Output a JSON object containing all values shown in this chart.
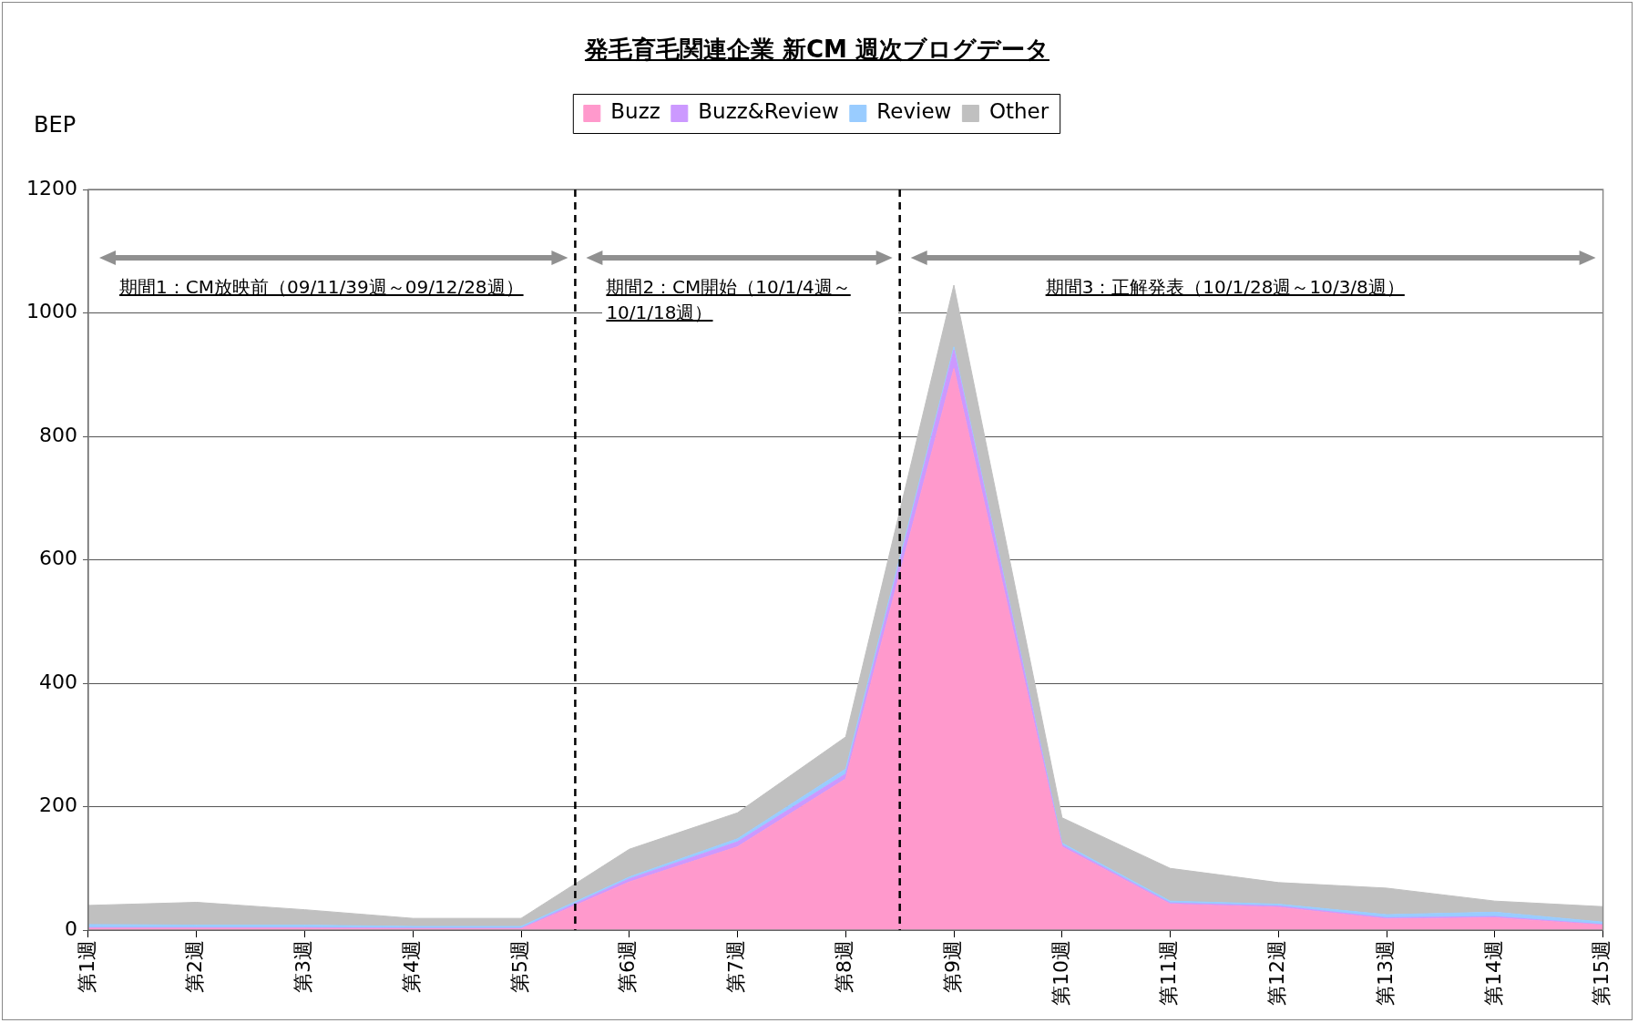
{
  "chart_data": {
    "type": "area",
    "title": "発毛育毛関連企業 新CM 週次ブログデータ",
    "ylabel": "BEP",
    "categories": [
      "第1週",
      "第2週",
      "第3週",
      "第4週",
      "第5週",
      "第6週",
      "第7週",
      "第8週",
      "第9週",
      "第10週",
      "第11週",
      "第12週",
      "第13週",
      "第14週",
      "第15週"
    ],
    "ylim": [
      0,
      1200
    ],
    "yticks": [
      0,
      200,
      400,
      600,
      800,
      1000,
      1200
    ],
    "stacked": true,
    "grid": "y",
    "legend": "top",
    "series": [
      {
        "name": "Buzz",
        "color": "#ff99cc",
        "values": [
          3,
          3,
          3,
          2,
          2,
          78,
          135,
          245,
          910,
          135,
          42,
          37,
          18,
          20,
          8
        ]
      },
      {
        "name": "Buzz&Review",
        "color": "#cc99ff",
        "values": [
          1,
          1,
          1,
          1,
          1,
          5,
          8,
          8,
          30,
          3,
          2,
          2,
          2,
          2,
          1
        ]
      },
      {
        "name": "Review",
        "color": "#99ccff",
        "values": [
          5,
          4,
          4,
          3,
          3,
          3,
          5,
          8,
          5,
          3,
          3,
          3,
          5,
          7,
          4
        ]
      },
      {
        "name": "Other",
        "color": "#c0c0c0",
        "values": [
          31,
          37,
          25,
          13,
          13,
          45,
          42,
          52,
          100,
          41,
          53,
          35,
          43,
          18,
          25
        ]
      }
    ],
    "annotations": [
      "期間1：CM放映前（09/11/39週～09/12/28週）",
      "期間2：CM開始（10/1/4週～10/1/18週）",
      "期間3：正解発表（10/1/28週～10/3/8週）"
    ]
  }
}
